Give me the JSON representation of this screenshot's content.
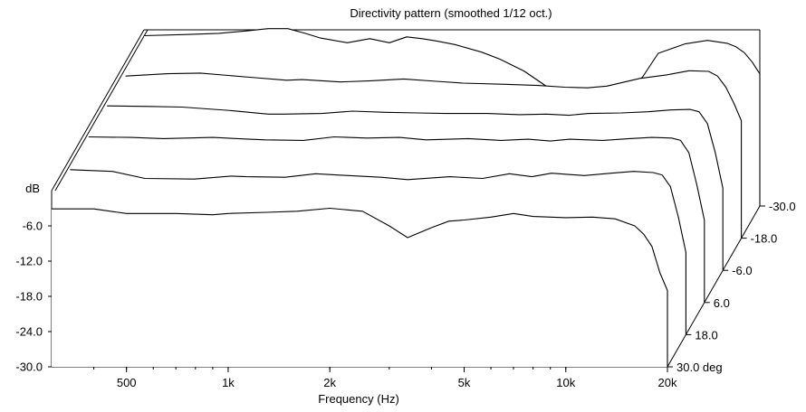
{
  "chart_data": {
    "type": "line",
    "title": "Directivity pattern (smoothed 1/12 oct.)",
    "xlabel": "Frequency (Hz)",
    "ylabel": "dB",
    "zlabel": "deg",
    "x_scale": "log",
    "xlim": [
      300,
      20000
    ],
    "ylim": [
      -30,
      0
    ],
    "y_ticks": [
      "-6.0",
      "-12.0",
      "-18.0",
      "-24.0",
      "-30.0"
    ],
    "x_ticks": [
      {
        "value": 500,
        "label": "500"
      },
      {
        "value": 1000,
        "label": "1k"
      },
      {
        "value": 2000,
        "label": "2k"
      },
      {
        "value": 5000,
        "label": "5k"
      },
      {
        "value": 10000,
        "label": "10k"
      },
      {
        "value": 20000,
        "label": "20k"
      }
    ],
    "angle_ticks": [
      "30.0 deg",
      "18.0",
      "6.0",
      "-6.0",
      "-18.0",
      "-30.0"
    ],
    "grid": false,
    "series": [
      {
        "angle": 30,
        "x": [
          300,
          400,
          500,
          700,
          900,
          1000,
          1300,
          1600,
          2000,
          2500,
          3000,
          3400,
          4000,
          4500,
          5000,
          6000,
          7000,
          8000,
          10000,
          12000,
          14000,
          16000,
          17000,
          18000,
          19000,
          20000
        ],
        "y": [
          -3.1,
          -3.1,
          -3.9,
          -3.9,
          -4.1,
          -3.9,
          -3.7,
          -3.5,
          -3.0,
          -3.5,
          -6.0,
          -8.0,
          -6.3,
          -5.2,
          -5.0,
          -4.5,
          -3.9,
          -4.4,
          -4.6,
          -4.5,
          -4.8,
          -6.0,
          -7.4,
          -9.5,
          -14.0,
          -17.0
        ]
      },
      {
        "angle": 18,
        "x": [
          300,
          400,
          500,
          700,
          900,
          1000,
          1300,
          1600,
          2000,
          2500,
          3000,
          4000,
          5000,
          6000,
          7000,
          8000,
          10000,
          12000,
          14000,
          16000,
          17000,
          18000,
          19000,
          20000
        ],
        "y": [
          -1.9,
          -2.2,
          -3.4,
          -3.5,
          -3.0,
          -3.1,
          -3.2,
          -2.6,
          -2.9,
          -3.2,
          -3.6,
          -3.1,
          -3.4,
          -2.6,
          -3.1,
          -2.5,
          -2.9,
          -2.5,
          -2.2,
          -2.4,
          -2.8,
          -4.8,
          -10.0,
          -16.0
        ]
      },
      {
        "angle": 6,
        "x": [
          300,
          400,
          500,
          700,
          900,
          1000,
          1300,
          1600,
          2000,
          2500,
          3000,
          4000,
          5000,
          6000,
          7000,
          8000,
          10000,
          12000,
          14000,
          16000,
          17000,
          18000,
          19000,
          20000
        ],
        "y": [
          -1.8,
          -1.9,
          -2.1,
          -1.9,
          -2.2,
          -2.3,
          -2.4,
          -1.8,
          -2.0,
          -1.9,
          -2.3,
          -2.1,
          -2.4,
          -2.2,
          -2.5,
          -2.2,
          -2.4,
          -2.1,
          -1.9,
          -2.0,
          -2.4,
          -4.5,
          -10.0,
          -16.0
        ]
      },
      {
        "angle": -6,
        "x": [
          300,
          400,
          500,
          700,
          900,
          1000,
          1300,
          1600,
          2000,
          2500,
          3000,
          4000,
          5000,
          6000,
          7000,
          8000,
          10000,
          12000,
          14000,
          16000,
          17000,
          18000,
          19000,
          20000
        ],
        "y": [
          -2.0,
          -2.1,
          -2.2,
          -2.8,
          -3.4,
          -3.4,
          -3.3,
          -2.9,
          -3.1,
          -3.2,
          -3.3,
          -3.3,
          -3.5,
          -3.4,
          -3.6,
          -3.3,
          -3.2,
          -3.0,
          -2.7,
          -2.6,
          -3.0,
          -5.0,
          -10.0,
          -16.0
        ]
      },
      {
        "angle": -18,
        "x": [
          300,
          400,
          500,
          700,
          900,
          1000,
          1300,
          1600,
          2000,
          2500,
          3000,
          4000,
          5000,
          6000,
          7000,
          8000,
          10000,
          12000,
          14000,
          16000,
          17000,
          18000,
          19000,
          20000
        ],
        "y": [
          -2.4,
          -2.0,
          -1.9,
          -2.6,
          -3.1,
          -3.0,
          -3.4,
          -3.2,
          -2.9,
          -3.3,
          -3.6,
          -3.8,
          -4.0,
          -4.3,
          -4.4,
          -4.1,
          -2.8,
          -2.2,
          -1.5,
          -1.6,
          -2.4,
          -4.3,
          -7.0,
          -10.0
        ]
      },
      {
        "angle": -30,
        "x": [
          300,
          400,
          500,
          600,
          700,
          800,
          900,
          1000,
          1200,
          1400,
          1600,
          1800,
          2000,
          2200,
          2500,
          3000,
          3400,
          4000,
          4500,
          5000,
          5500,
          6000,
          7000,
          8000,
          9000,
          10000,
          12000,
          14000,
          16000,
          17000,
          18000,
          19000,
          20000
        ],
        "y": [
          -1.0,
          -0.8,
          -0.6,
          -0.2,
          0.2,
          0.2,
          -0.6,
          -1.4,
          -2.2,
          -1.5,
          -2.2,
          -1.2,
          -1.5,
          -1.9,
          -2.5,
          -3.8,
          -5.0,
          -7.0,
          -9.0,
          -10.8,
          -11.0,
          -11.3,
          -11.5,
          -11.2,
          -8.0,
          -4.0,
          -2.4,
          -1.8,
          -2.3,
          -2.9,
          -3.9,
          -5.5,
          -7.5
        ]
      }
    ]
  }
}
